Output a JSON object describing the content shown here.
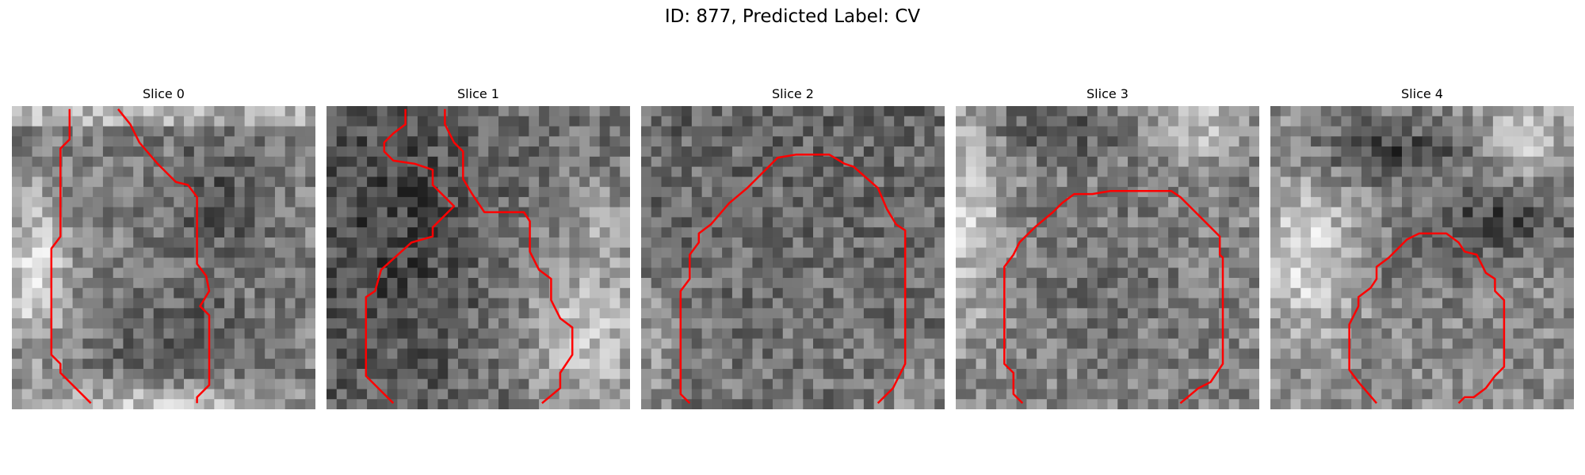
{
  "figure": {
    "title": "ID: 877, Predicted Label: CV",
    "contour_color": "#ff0000"
  },
  "slices": [
    {
      "label": "Slice 0"
    },
    {
      "label": "Slice 1"
    },
    {
      "label": "Slice 2"
    },
    {
      "label": "Slice 3"
    },
    {
      "label": "Slice 4"
    }
  ]
}
